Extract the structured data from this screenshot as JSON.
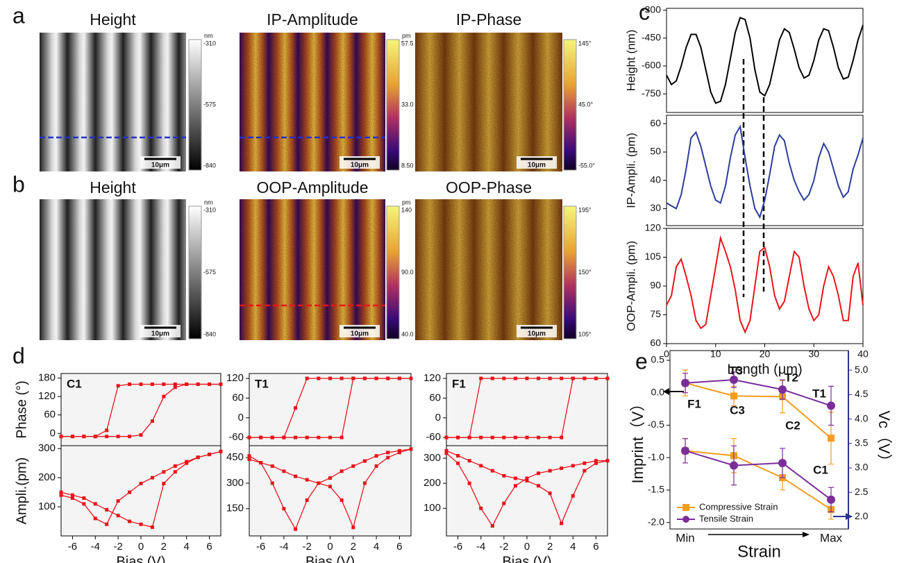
{
  "panel_labels": [
    "a",
    "b",
    "c",
    "d",
    "e"
  ],
  "maps": [
    {
      "title": "Height",
      "unit": "nm",
      "colorbar_labels": [
        "-310",
        "-575",
        "-840"
      ],
      "scale_bar": "10μm"
    },
    {
      "title": "IP-Amplitude",
      "unit": "pm",
      "colorbar_labels": [
        "57.5",
        "33.0",
        "8.50"
      ],
      "scale_bar": "10μm"
    },
    {
      "title": "IP-Phase",
      "colorbar_labels": [
        "145°",
        "45.0°",
        "-55.0°"
      ],
      "scale_bar": "10μm"
    },
    {
      "title": "Height",
      "unit": "nm",
      "colorbar_labels": [
        "-310",
        "-575",
        "-840"
      ],
      "scale_bar": "10μm"
    },
    {
      "title": "OOP-Amplitude",
      "unit": "pm",
      "colorbar_labels": [
        "140",
        "90.0",
        "40.0"
      ],
      "scale_bar": "10μm"
    },
    {
      "title": "OOP-Phase",
      "colorbar_labels": [
        "195°",
        "150°",
        "105°"
      ],
      "scale_bar": "10μm"
    }
  ],
  "chart_data": [
    {
      "type": "line",
      "ylabel": "Height (nm)",
      "x": [
        0,
        1,
        2,
        3,
        4,
        5,
        6,
        7,
        8,
        9,
        10,
        11,
        12,
        13,
        14,
        15,
        16,
        17,
        18,
        19,
        20,
        21,
        22,
        23,
        24,
        25,
        26,
        27,
        28,
        29,
        30,
        31,
        32,
        33,
        34,
        35,
        36,
        37,
        38,
        39,
        40
      ],
      "xlim": [
        0,
        40
      ],
      "ylim": [
        -850,
        -290
      ],
      "yticks": [
        -300,
        -450,
        -600,
        -750
      ],
      "series": [
        {
          "color": "#000000",
          "values": [
            -650,
            -700,
            -680,
            -600,
            -500,
            -430,
            -430,
            -500,
            -620,
            -740,
            -800,
            -790,
            -700,
            -560,
            -420,
            -340,
            -350,
            -450,
            -620,
            -740,
            -760,
            -700,
            -580,
            -460,
            -400,
            -420,
            -510,
            -610,
            -665,
            -650,
            -570,
            -460,
            -400,
            -410,
            -500,
            -610,
            -670,
            -660,
            -570,
            -460,
            -380
          ]
        }
      ]
    },
    {
      "type": "line",
      "ylabel": "IP-Ampli. (pm)",
      "x": [
        0,
        1,
        2,
        3,
        4,
        5,
        6,
        7,
        8,
        9,
        10,
        11,
        12,
        13,
        14,
        15,
        16,
        17,
        18,
        19,
        20,
        21,
        22,
        23,
        24,
        25,
        26,
        27,
        28,
        29,
        30,
        31,
        32,
        33,
        34,
        35,
        36,
        37,
        38,
        39,
        40
      ],
      "xlim": [
        0,
        40
      ],
      "ylim": [
        24,
        63
      ],
      "yticks": [
        30,
        40,
        50,
        60
      ],
      "series": [
        {
          "color": "#2b3c9c",
          "values": [
            32,
            31,
            30,
            35,
            44,
            55,
            57,
            52,
            45,
            38,
            33,
            32,
            38,
            48,
            56,
            59,
            48,
            38,
            30,
            27,
            33,
            42,
            52,
            56,
            54,
            46,
            40,
            36,
            33,
            35,
            40,
            48,
            53,
            50,
            44,
            38,
            34,
            36,
            44,
            49,
            55
          ]
        }
      ]
    },
    {
      "type": "line",
      "ylabel": "OOP-Ampli. (pm)",
      "xlabel": "Length (μm)",
      "x": [
        0,
        1,
        2,
        3,
        4,
        5,
        6,
        7,
        8,
        9,
        10,
        11,
        12,
        13,
        14,
        15,
        16,
        17,
        18,
        19,
        20,
        21,
        22,
        23,
        24,
        25,
        26,
        27,
        28,
        29,
        30,
        31,
        32,
        33,
        34,
        35,
        36,
        37,
        38,
        39,
        40
      ],
      "xlim": [
        0,
        40
      ],
      "xticks": [
        0,
        10,
        20,
        30,
        40
      ],
      "ylim": [
        60,
        120
      ],
      "yticks": [
        60,
        75,
        90,
        105,
        120
      ],
      "series": [
        {
          "color": "#e8141b",
          "values": [
            80,
            85,
            100,
            104,
            95,
            85,
            72,
            68,
            70,
            85,
            100,
            115,
            108,
            100,
            88,
            72,
            66,
            72,
            90,
            108,
            110,
            100,
            85,
            78,
            82,
            95,
            108,
            105,
            90,
            78,
            72,
            75,
            90,
            100,
            95,
            85,
            72,
            72,
            95,
            102,
            80
          ]
        }
      ]
    },
    {
      "type": "line",
      "label": "C1",
      "ylabel": "Phase (°)",
      "x": [
        -7,
        -6,
        -5,
        -4,
        -3,
        -2,
        -1,
        0,
        1,
        2,
        3,
        4,
        5,
        6,
        7
      ],
      "xlim": [
        -7,
        7
      ],
      "ylim": [
        -40,
        195
      ],
      "yticks": [
        0,
        60,
        120,
        180
      ],
      "series": [
        {
          "color": "#e8141b",
          "values": [
            -10,
            -10,
            -10,
            -10,
            -10,
            -10,
            -10,
            -5,
            40,
            120,
            150,
            160,
            160,
            160,
            160
          ]
        },
        {
          "color": "#e8141b",
          "values": [
            -10,
            -10,
            -10,
            -10,
            10,
            155,
            160,
            160,
            160,
            160,
            160,
            160,
            160,
            160,
            160
          ]
        }
      ]
    },
    {
      "type": "line",
      "ylabel": "Ampli.(pm)",
      "xlabel": "Bias (V)",
      "x": [
        -7,
        -6,
        -5,
        -4,
        -3,
        -2,
        -1,
        0,
        1,
        2,
        3,
        4,
        5,
        6,
        7
      ],
      "xlim": [
        -7,
        7
      ],
      "xticks": [
        -6,
        -4,
        -2,
        0,
        2,
        4,
        6
      ],
      "ylim": [
        0,
        310
      ],
      "yticks": [
        100,
        200,
        300
      ],
      "series": [
        {
          "color": "#e8141b",
          "values": [
            150,
            140,
            130,
            110,
            90,
            70,
            50,
            40,
            30,
            180,
            220,
            250,
            270,
            280,
            290
          ]
        },
        {
          "color": "#e8141b",
          "values": [
            140,
            130,
            110,
            60,
            40,
            120,
            150,
            180,
            200,
            220,
            240,
            255,
            270,
            280,
            290
          ]
        }
      ]
    },
    {
      "type": "line",
      "label": "T1",
      "x": [
        -7,
        -6,
        -5,
        -4,
        -3,
        -2,
        -1,
        0,
        1,
        2,
        3,
        4,
        5,
        6,
        7
      ],
      "xlim": [
        -7,
        7
      ],
      "ylim": [
        -85,
        135
      ],
      "yticks": [
        -60,
        0,
        60,
        120
      ],
      "series": [
        {
          "color": "#e8141b",
          "values": [
            -60,
            -60,
            -60,
            -60,
            -60,
            -60,
            -60,
            -60,
            -60,
            120,
            120,
            120,
            120,
            120,
            120
          ]
        },
        {
          "color": "#e8141b",
          "values": [
            -60,
            -60,
            -60,
            -60,
            30,
            120,
            120,
            120,
            120,
            120,
            120,
            120,
            120,
            120,
            120
          ]
        }
      ]
    },
    {
      "type": "line",
      "xlabel": "Bias (V)",
      "x": [
        -7,
        -6,
        -5,
        -4,
        -3,
        -2,
        -1,
        0,
        1,
        2,
        3,
        4,
        5,
        6,
        7
      ],
      "xlim": [
        -7,
        7
      ],
      "xticks": [
        -6,
        -4,
        -2,
        0,
        2,
        4,
        6
      ],
      "ylim": [
        -10,
        520
      ],
      "yticks": [
        150,
        300,
        450
      ],
      "series": [
        {
          "color": "#e8141b",
          "values": [
            440,
            420,
            400,
            370,
            340,
            320,
            300,
            280,
            200,
            40,
            300,
            400,
            450,
            480,
            500
          ]
        },
        {
          "color": "#e8141b",
          "values": [
            460,
            420,
            300,
            150,
            30,
            200,
            300,
            330,
            370,
            400,
            430,
            460,
            480,
            490,
            500
          ]
        }
      ]
    },
    {
      "type": "line",
      "label": "F1",
      "x": [
        -7,
        -6,
        -5,
        -4,
        -3,
        -2,
        -1,
        0,
        1,
        2,
        3,
        4,
        5,
        6,
        7
      ],
      "xlim": [
        -7,
        7
      ],
      "ylim": [
        -85,
        135
      ],
      "yticks": [
        -60,
        0,
        60,
        120
      ],
      "series": [
        {
          "color": "#e8141b",
          "values": [
            -60,
            -60,
            -60,
            -60,
            -60,
            -60,
            -60,
            -60,
            -60,
            -60,
            -60,
            120,
            120,
            120,
            120
          ]
        },
        {
          "color": "#e8141b",
          "values": [
            -60,
            -60,
            -60,
            120,
            120,
            120,
            120,
            120,
            120,
            120,
            120,
            120,
            120,
            120,
            120
          ]
        }
      ]
    },
    {
      "type": "line",
      "xlabel": "Bias (V)",
      "x": [
        -7,
        -6,
        -5,
        -4,
        -3,
        -2,
        -1,
        0,
        1,
        2,
        3,
        4,
        5,
        6,
        7
      ],
      "xlim": [
        -7,
        7
      ],
      "xticks": [
        -6,
        -4,
        -2,
        0,
        2,
        4,
        6
      ],
      "ylim": [
        -10,
        350
      ],
      "yticks": [
        100,
        200,
        300
      ],
      "series": [
        {
          "color": "#e8141b",
          "values": [
            330,
            310,
            290,
            270,
            250,
            230,
            220,
            210,
            190,
            160,
            40,
            150,
            250,
            280,
            290
          ]
        },
        {
          "color": "#e8141b",
          "values": [
            320,
            280,
            200,
            100,
            30,
            120,
            190,
            220,
            240,
            250,
            260,
            270,
            280,
            290,
            290
          ]
        }
      ]
    },
    {
      "type": "line",
      "ylabel": "Imprint（V）",
      "y2label": "Vc（V）",
      "xlabel": "Strain",
      "y2color": "#2e3192",
      "categories": [
        "Min",
        null,
        null,
        "Max"
      ],
      "ylim": [
        -2.1,
        0.65
      ],
      "yticks": [
        0.5,
        {
          "value": 0,
          "label": "0.0"
        },
        -0.5,
        {
          "value": -1,
          "label": "-1.0"
        },
        -1.5,
        {
          "value": -2,
          "label": "-2.0"
        }
      ],
      "y2lim": [
        1.75,
        5.4
      ],
      "y2ticks": [
        {
          "value": 5,
          "label": "5.0"
        },
        4.5,
        {
          "value": 4,
          "label": "4.0"
        },
        3.5,
        {
          "value": 3,
          "label": "3.0"
        },
        2.5,
        {
          "value": 2,
          "label": "2.0"
        }
      ],
      "legend": "lower left",
      "series": [
        {
          "name": "Compressive Strain",
          "color": "#f39c1e",
          "marker": "square",
          "values": [
            0.15,
            -0.05,
            -0.06,
            -0.7
          ],
          "errors": [
            0.2,
            0.15,
            0.25,
            0.4
          ]
        },
        {
          "name": "Tensile Strain",
          "color": "#7b2d9a",
          "marker": "circle",
          "values": [
            0.15,
            0.2,
            0.05,
            -0.2
          ],
          "errors": [
            0.15,
            0.12,
            0.15,
            0.3
          ]
        },
        {
          "color": "#f39c1e",
          "marker": "square",
          "axis": "y2",
          "values": [
            3.35,
            3.25,
            2.8,
            2.15
          ],
          "errors": [
            0.25,
            0.35,
            0.25,
            0.2
          ]
        },
        {
          "color": "#7b2d9a",
          "marker": "circle",
          "axis": "y2",
          "values": [
            3.35,
            3.05,
            3.1,
            2.35
          ],
          "errors": [
            0.25,
            0.4,
            0.3,
            0.25
          ]
        }
      ],
      "annotations": [
        {
          "text": "F1",
          "color": "#000000"
        },
        {
          "text": "T3",
          "color": "#7b2d9a"
        },
        {
          "text": "T2",
          "color": "#7b2d9a"
        },
        {
          "text": "T1",
          "color": "#7b2d9a"
        },
        {
          "text": "C3",
          "color": "#f39c1e"
        },
        {
          "text": "C2",
          "color": "#f39c1e"
        },
        {
          "text": "C1",
          "color": "#f39c1e"
        }
      ]
    }
  ]
}
